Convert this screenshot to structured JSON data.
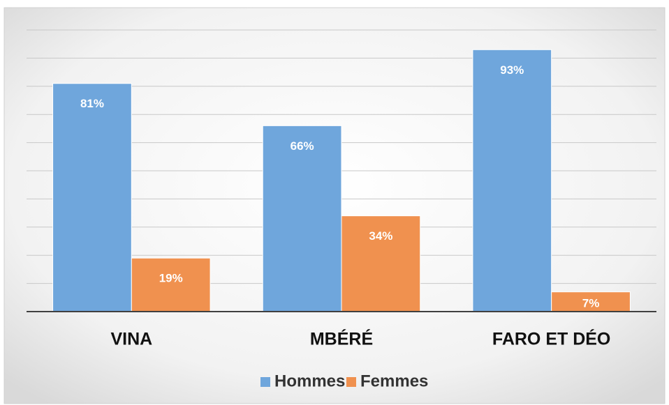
{
  "chart_data": {
    "type": "bar",
    "categories": [
      "VINA",
      "MBÉRÉ",
      "FARO ET DÉO"
    ],
    "series": [
      {
        "name": "Hommes",
        "color": "#6fa6dc",
        "values": [
          81,
          66,
          93
        ],
        "value_labels": [
          "81%",
          "66%",
          "93%"
        ]
      },
      {
        "name": "Femmes",
        "color": "#f0914f",
        "values": [
          19,
          34,
          7
        ],
        "value_labels": [
          "19%",
          "34%",
          "7%"
        ]
      }
    ],
    "ylim": [
      0,
      100
    ],
    "yticks": [
      0,
      10,
      20,
      30,
      40,
      50,
      60,
      70,
      80,
      90,
      100
    ],
    "grid": true,
    "legend": "bottom"
  }
}
